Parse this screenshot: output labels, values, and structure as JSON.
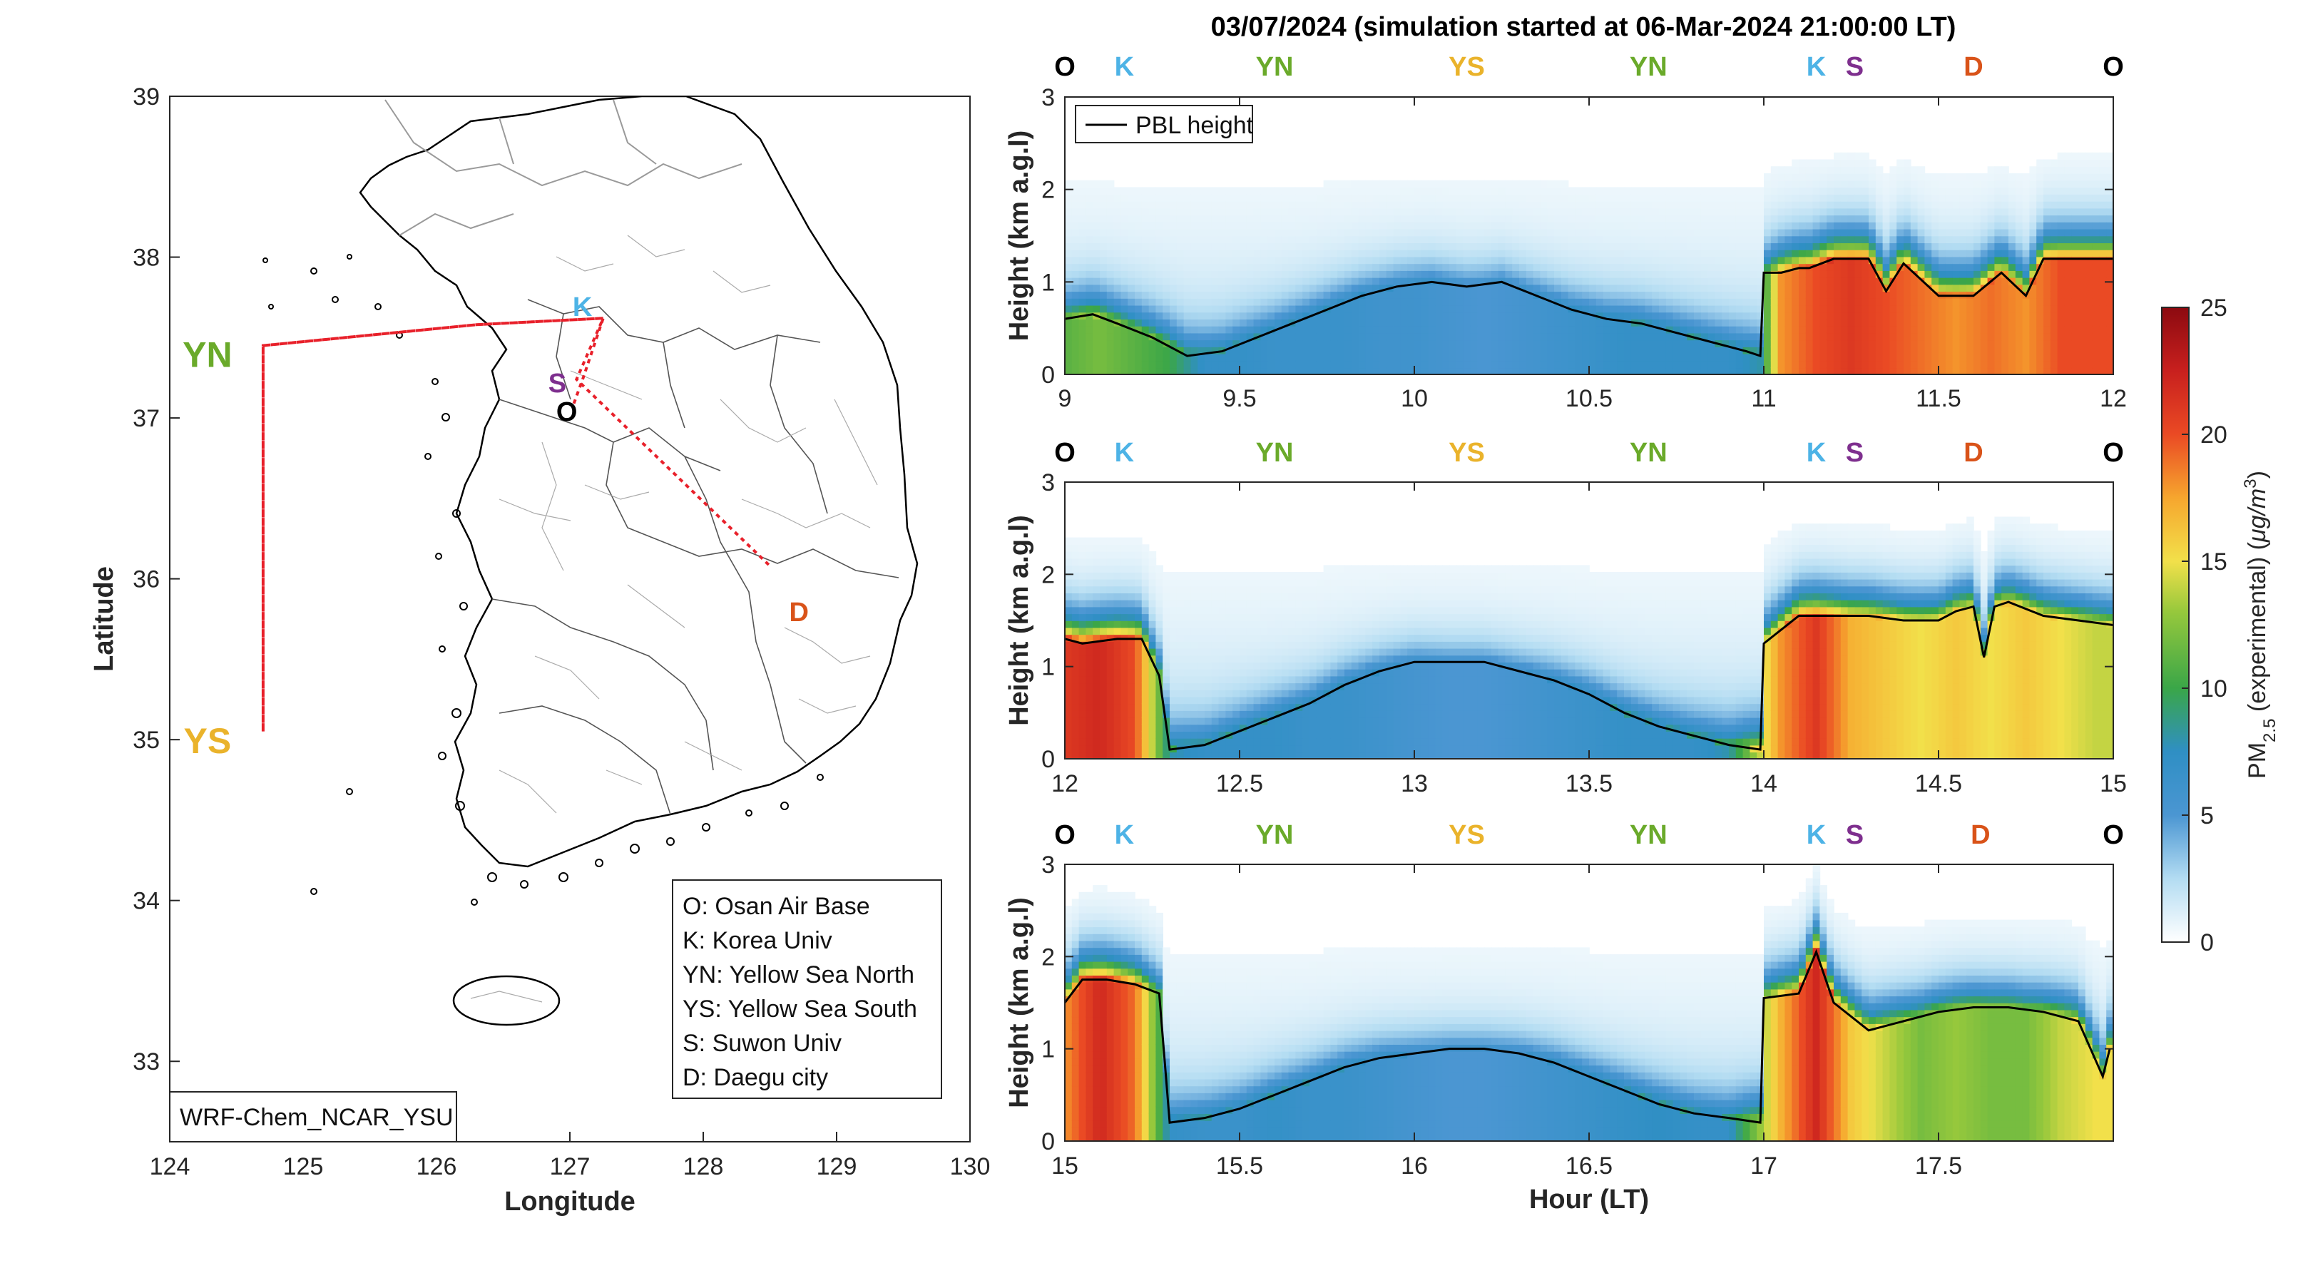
{
  "title": "03/07/2024 (simulation started at 06-Mar-2024 21:00:00 LT)",
  "colors": {
    "O": "#000000",
    "K": "#4db3e6",
    "YN": "#6aaa2a",
    "YS": "#eab32b",
    "S": "#7e2f8e",
    "D": "#d95319",
    "route": "#e8202a"
  },
  "map": {
    "xlabel": "Longitude",
    "ylabel": "Latitude",
    "xlim": [
      124,
      130
    ],
    "ylim": [
      32.5,
      39
    ],
    "xticks": [
      124,
      125,
      126,
      127,
      128,
      129,
      130
    ],
    "yticks": [
      33,
      34,
      35,
      36,
      37,
      38,
      39
    ],
    "model_label": "WRF-Chem_NCAR_YSU",
    "sites": [
      {
        "code": "O",
        "lon": 127.03,
        "lat": 37.09
      },
      {
        "code": "K",
        "lon": 127.03,
        "lat": 37.59
      },
      {
        "code": "YN",
        "lon": 124.7,
        "lat": 37.45
      },
      {
        "code": "YS",
        "lon": 124.7,
        "lat": 35.05
      },
      {
        "code": "S",
        "lon": 126.97,
        "lat": 37.24
      },
      {
        "code": "D",
        "lon": 128.6,
        "lat": 35.87
      }
    ],
    "route": [
      [
        127.03,
        37.09
      ],
      [
        127.1,
        37.25
      ],
      [
        127.25,
        37.62
      ],
      [
        126.3,
        37.58
      ],
      [
        124.7,
        37.45
      ],
      [
        124.7,
        35.05
      ],
      [
        124.7,
        37.45
      ],
      [
        126.3,
        37.58
      ],
      [
        127.25,
        37.62
      ],
      [
        127.05,
        37.24
      ],
      [
        128.5,
        36.08
      ]
    ],
    "legend_items": [
      "O: Osan Air Base",
      "K: Korea Univ",
      "YN: Yellow Sea North",
      "YS: Yellow Sea South",
      "S: Suwon Univ",
      "D: Daegu city"
    ]
  },
  "chart_data": [
    {
      "type": "heatmap",
      "xlim": [
        9,
        12
      ],
      "ylim": [
        0,
        3
      ],
      "xticks": [
        9,
        9.5,
        10,
        10.5,
        11,
        11.5,
        12
      ],
      "yticks": [
        0,
        1,
        2,
        3
      ],
      "ylabel": "Height (km a.g.l)",
      "legend": "PBL height",
      "site_labels": [
        {
          "label": "O",
          "x": 9.0
        },
        {
          "label": "K",
          "x": 9.17
        },
        {
          "label": "YN",
          "x": 9.6
        },
        {
          "label": "YS",
          "x": 10.15
        },
        {
          "label": "YN",
          "x": 10.67
        },
        {
          "label": "K",
          "x": 11.15
        },
        {
          "label": "S",
          "x": 11.26
        },
        {
          "label": "D",
          "x": 11.6
        },
        {
          "label": "O",
          "x": 12.0
        }
      ],
      "pbl_height": {
        "x": [
          9.0,
          9.08,
          9.15,
          9.25,
          9.35,
          9.45,
          9.55,
          9.65,
          9.75,
          9.85,
          9.95,
          10.05,
          10.15,
          10.25,
          10.35,
          10.45,
          10.55,
          10.65,
          10.75,
          10.85,
          10.95,
          10.99,
          11.0,
          11.05,
          11.1,
          11.13,
          11.2,
          11.3,
          11.35,
          11.4,
          11.5,
          11.6,
          11.68,
          11.75,
          11.8,
          11.9,
          12.0
        ],
        "y": [
          0.6,
          0.65,
          0.55,
          0.4,
          0.2,
          0.25,
          0.4,
          0.55,
          0.7,
          0.85,
          0.95,
          1.0,
          0.95,
          1.0,
          0.85,
          0.7,
          0.6,
          0.55,
          0.45,
          0.35,
          0.25,
          0.2,
          1.1,
          1.1,
          1.15,
          1.15,
          1.25,
          1.25,
          0.9,
          1.2,
          0.85,
          0.85,
          1.1,
          0.85,
          1.25,
          1.25,
          1.25
        ]
      },
      "pm25_profile": {
        "x": [
          9.0,
          9.1,
          9.2,
          9.3,
          9.4,
          9.5,
          9.6,
          9.7,
          9.8,
          9.9,
          10.0,
          10.1,
          10.2,
          10.3,
          10.4,
          10.5,
          10.6,
          10.7,
          10.8,
          10.9,
          10.99,
          11.05,
          11.15,
          11.25,
          11.35,
          11.45,
          11.55,
          11.65,
          11.75,
          11.85,
          11.95
        ],
        "y": [
          11,
          12,
          11,
          10,
          7,
          7,
          6.5,
          6.5,
          6.5,
          6,
          6,
          5.5,
          5,
          5.5,
          6,
          6.5,
          7,
          7,
          7,
          7,
          8,
          18,
          20,
          21,
          20,
          19,
          18,
          19,
          18,
          20,
          20
        ]
      }
    },
    {
      "type": "heatmap",
      "xlim": [
        12,
        15
      ],
      "ylim": [
        0,
        3
      ],
      "xticks": [
        12,
        12.5,
        13,
        13.5,
        14,
        14.5,
        15
      ],
      "yticks": [
        0,
        1,
        2,
        3
      ],
      "ylabel": "Height (km a.g.l)",
      "site_labels": [
        {
          "label": "O",
          "x": 12.0
        },
        {
          "label": "K",
          "x": 12.17
        },
        {
          "label": "YN",
          "x": 12.6
        },
        {
          "label": "YS",
          "x": 13.15
        },
        {
          "label": "YN",
          "x": 13.67
        },
        {
          "label": "K",
          "x": 14.15
        },
        {
          "label": "S",
          "x": 14.26
        },
        {
          "label": "D",
          "x": 14.6
        },
        {
          "label": "O",
          "x": 15.0
        }
      ],
      "pbl_height": {
        "x": [
          12.0,
          12.05,
          12.15,
          12.22,
          12.27,
          12.3,
          12.4,
          12.5,
          12.6,
          12.7,
          12.8,
          12.9,
          13.0,
          13.1,
          13.2,
          13.3,
          13.4,
          13.5,
          13.6,
          13.7,
          13.8,
          13.9,
          13.99,
          14.0,
          14.1,
          14.2,
          14.3,
          14.4,
          14.5,
          14.55,
          14.6,
          14.63,
          14.66,
          14.7,
          14.8,
          14.9,
          15.0
        ],
        "y": [
          1.3,
          1.25,
          1.3,
          1.3,
          0.9,
          0.1,
          0.15,
          0.3,
          0.45,
          0.6,
          0.8,
          0.95,
          1.05,
          1.05,
          1.05,
          0.95,
          0.85,
          0.7,
          0.5,
          0.35,
          0.25,
          0.15,
          0.1,
          1.25,
          1.55,
          1.55,
          1.55,
          1.5,
          1.5,
          1.6,
          1.65,
          1.1,
          1.65,
          1.7,
          1.55,
          1.5,
          1.45
        ]
      },
      "pm25_profile": {
        "x": [
          12.0,
          12.1,
          12.2,
          12.3,
          12.4,
          12.5,
          12.6,
          12.7,
          12.8,
          12.9,
          13.0,
          13.1,
          13.2,
          13.3,
          13.4,
          13.5,
          13.6,
          13.7,
          13.8,
          13.9,
          14.05,
          14.15,
          14.25,
          14.35,
          14.45,
          14.55,
          14.65,
          14.75,
          14.85,
          14.95
        ],
        "y": [
          21,
          22,
          20,
          8,
          7,
          7,
          7,
          6.5,
          6.5,
          6,
          5.5,
          5,
          5,
          5.5,
          6,
          6.5,
          7,
          7,
          7,
          8,
          18,
          21,
          17,
          16,
          15,
          16,
          15,
          16,
          15,
          14
        ]
      }
    },
    {
      "type": "heatmap",
      "xlim": [
        15,
        18
      ],
      "ylim": [
        0,
        3
      ],
      "xticks": [
        15,
        15.5,
        16,
        16.5,
        17,
        17.5
      ],
      "yticks": [
        0,
        1,
        2,
        3
      ],
      "ylabel": "Height (km a.g.l)",
      "xlabel": "Hour (LT)",
      "site_labels": [
        {
          "label": "O",
          "x": 15.0
        },
        {
          "label": "K",
          "x": 15.17
        },
        {
          "label": "YN",
          "x": 15.6
        },
        {
          "label": "YS",
          "x": 16.15
        },
        {
          "label": "YN",
          "x": 16.67
        },
        {
          "label": "K",
          "x": 17.15
        },
        {
          "label": "S",
          "x": 17.26
        },
        {
          "label": "D",
          "x": 17.62
        },
        {
          "label": "O",
          "x": 18.0
        }
      ],
      "pbl_height": {
        "x": [
          15.0,
          15.05,
          15.12,
          15.2,
          15.27,
          15.3,
          15.4,
          15.5,
          15.6,
          15.7,
          15.8,
          15.9,
          16.0,
          16.1,
          16.2,
          16.3,
          16.4,
          16.5,
          16.6,
          16.7,
          16.8,
          16.9,
          16.99,
          17.0,
          17.1,
          17.15,
          17.2,
          17.3,
          17.4,
          17.5,
          17.6,
          17.7,
          17.8,
          17.9,
          17.97,
          17.99
        ],
        "y": [
          1.5,
          1.75,
          1.75,
          1.7,
          1.6,
          0.2,
          0.25,
          0.35,
          0.5,
          0.65,
          0.8,
          0.9,
          0.95,
          1.0,
          1.0,
          0.95,
          0.85,
          0.7,
          0.55,
          0.4,
          0.3,
          0.25,
          0.2,
          1.55,
          1.6,
          2.05,
          1.5,
          1.2,
          1.3,
          1.4,
          1.45,
          1.45,
          1.4,
          1.3,
          0.7,
          1.0
        ]
      },
      "pm25_profile": {
        "x": [
          15.0,
          15.1,
          15.2,
          15.3,
          15.4,
          15.5,
          15.6,
          15.7,
          15.8,
          15.9,
          16.0,
          16.1,
          16.2,
          16.3,
          16.4,
          16.5,
          16.6,
          16.7,
          16.8,
          16.9,
          17.05,
          17.15,
          17.25,
          17.35,
          17.45,
          17.55,
          17.65,
          17.75,
          17.85,
          17.95
        ],
        "y": [
          18,
          22,
          19,
          7,
          6.5,
          6.5,
          7,
          6.5,
          6.5,
          6,
          5.5,
          5,
          5,
          5.5,
          6,
          6.5,
          7,
          7.5,
          7,
          7,
          17,
          22,
          16,
          14,
          12,
          13,
          12,
          12,
          14,
          15
        ]
      }
    }
  ],
  "colorbar": {
    "label": "PM",
    "label_sub": "2.5",
    "label_rest": " (experimental) (",
    "label_unit": "μg/m",
    "label_sup": "3",
    "label_close": ")",
    "range": [
      0,
      25
    ],
    "ticks": [
      0,
      5,
      10,
      15,
      20,
      25
    ]
  }
}
